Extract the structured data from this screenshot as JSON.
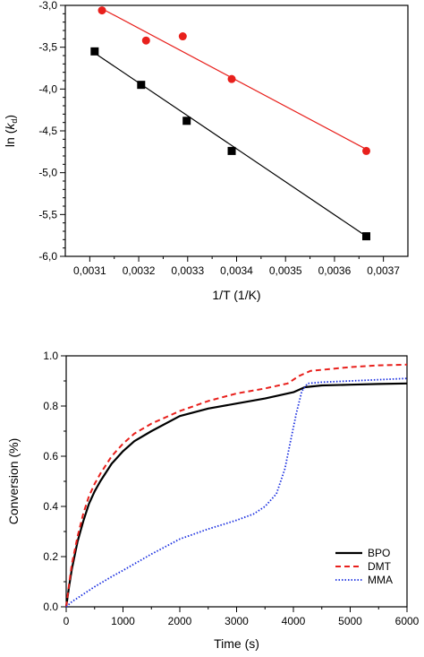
{
  "chart_data": [
    {
      "type": "scatter",
      "xlabel": "1/T (1/K)",
      "ylabel_prefix": "ln (",
      "ylabel_italic": "k",
      "ylabel_sub": "d",
      "ylabel_suffix": ")",
      "xlim": [
        0.00305,
        0.00375
      ],
      "ylim": [
        -6.0,
        -3.0
      ],
      "xticks": [
        0.0031,
        0.0032,
        0.0033,
        0.0034,
        0.0035,
        0.0036,
        0.0037
      ],
      "xtick_labels": [
        "0,0031",
        "0,0032",
        "0,0033",
        "0,0034",
        "0,0035",
        "0,0036",
        "0,0037"
      ],
      "yticks": [
        -3.0,
        -3.5,
        -4.0,
        -4.5,
        -5.0,
        -5.5,
        -6.0
      ],
      "ytick_labels": [
        "-3,0",
        "-3,5",
        "-4,0",
        "-4,5",
        "-5,0",
        "-5,5",
        "-6,0"
      ],
      "series": [
        {
          "marker": "circle",
          "color": "#e8201c",
          "points": [
            [
              0.003125,
              -3.06
            ],
            [
              0.003215,
              -3.42
            ],
            [
              0.00329,
              -3.37
            ],
            [
              0.00339,
              -3.88
            ],
            [
              0.003665,
              -4.74
            ]
          ],
          "fit": [
            [
              0.003125,
              -3.04
            ],
            [
              0.003665,
              -4.72
            ]
          ]
        },
        {
          "marker": "square",
          "color": "#000000",
          "points": [
            [
              0.00311,
              -3.55
            ],
            [
              0.003205,
              -3.95
            ],
            [
              0.003298,
              -4.38
            ],
            [
              0.00339,
              -4.74
            ],
            [
              0.003665,
              -5.76
            ]
          ],
          "fit": [
            [
              0.00311,
              -3.57
            ],
            [
              0.003665,
              -5.76
            ]
          ]
        }
      ]
    },
    {
      "type": "line",
      "xlabel": "Time (s)",
      "ylabel": "Conversion (%)",
      "xlim": [
        0,
        6000
      ],
      "ylim": [
        0.0,
        1.0
      ],
      "xticks": [
        0,
        1000,
        2000,
        3000,
        4000,
        5000,
        6000
      ],
      "xtick_labels": [
        "0",
        "1000",
        "2000",
        "3000",
        "4000",
        "5000",
        "6000"
      ],
      "yticks": [
        0.0,
        0.2,
        0.4,
        0.6,
        0.8,
        1.0
      ],
      "ytick_labels": [
        "0.0",
        "0.2",
        "0.4",
        "0.6",
        "0.8",
        "1.0"
      ],
      "legend_position": "bottom-right",
      "series": [
        {
          "name": "BPO",
          "color": "#000000",
          "style": "solid",
          "points": [
            [
              0,
              0
            ],
            [
              50,
              0.08
            ],
            [
              100,
              0.15
            ],
            [
              200,
              0.26
            ],
            [
              300,
              0.34
            ],
            [
              400,
              0.41
            ],
            [
              500,
              0.46
            ],
            [
              600,
              0.5
            ],
            [
              800,
              0.57
            ],
            [
              1000,
              0.62
            ],
            [
              1200,
              0.66
            ],
            [
              1500,
              0.7
            ],
            [
              2000,
              0.76
            ],
            [
              2500,
              0.79
            ],
            [
              3000,
              0.81
            ],
            [
              3500,
              0.83
            ],
            [
              4000,
              0.855
            ],
            [
              4200,
              0.875
            ],
            [
              4500,
              0.882
            ],
            [
              5000,
              0.885
            ],
            [
              5500,
              0.888
            ],
            [
              6000,
              0.89
            ]
          ]
        },
        {
          "name": "DMT",
          "color": "#e8201c",
          "style": "dashed",
          "points": [
            [
              0,
              0
            ],
            [
              50,
              0.09
            ],
            [
              100,
              0.17
            ],
            [
              200,
              0.28
            ],
            [
              300,
              0.37
            ],
            [
              400,
              0.44
            ],
            [
              500,
              0.49
            ],
            [
              600,
              0.53
            ],
            [
              800,
              0.6
            ],
            [
              1000,
              0.65
            ],
            [
              1200,
              0.69
            ],
            [
              1500,
              0.73
            ],
            [
              2000,
              0.78
            ],
            [
              2500,
              0.82
            ],
            [
              3000,
              0.85
            ],
            [
              3500,
              0.87
            ],
            [
              3900,
              0.89
            ],
            [
              4100,
              0.92
            ],
            [
              4300,
              0.94
            ],
            [
              5000,
              0.955
            ],
            [
              5500,
              0.962
            ],
            [
              6000,
              0.965
            ]
          ]
        },
        {
          "name": "MMA",
          "color": "#1a2fe0",
          "style": "dotted",
          "points": [
            [
              0,
              0
            ],
            [
              100,
              0.02
            ],
            [
              300,
              0.05
            ],
            [
              500,
              0.08
            ],
            [
              800,
              0.12
            ],
            [
              1000,
              0.145
            ],
            [
              1500,
              0.21
            ],
            [
              2000,
              0.27
            ],
            [
              2500,
              0.31
            ],
            [
              3000,
              0.345
            ],
            [
              3300,
              0.37
            ],
            [
              3500,
              0.4
            ],
            [
              3700,
              0.45
            ],
            [
              3850,
              0.55
            ],
            [
              3950,
              0.66
            ],
            [
              4050,
              0.77
            ],
            [
              4150,
              0.86
            ],
            [
              4250,
              0.89
            ],
            [
              4500,
              0.895
            ],
            [
              5000,
              0.9
            ],
            [
              5500,
              0.905
            ],
            [
              6000,
              0.91
            ]
          ]
        }
      ]
    }
  ]
}
